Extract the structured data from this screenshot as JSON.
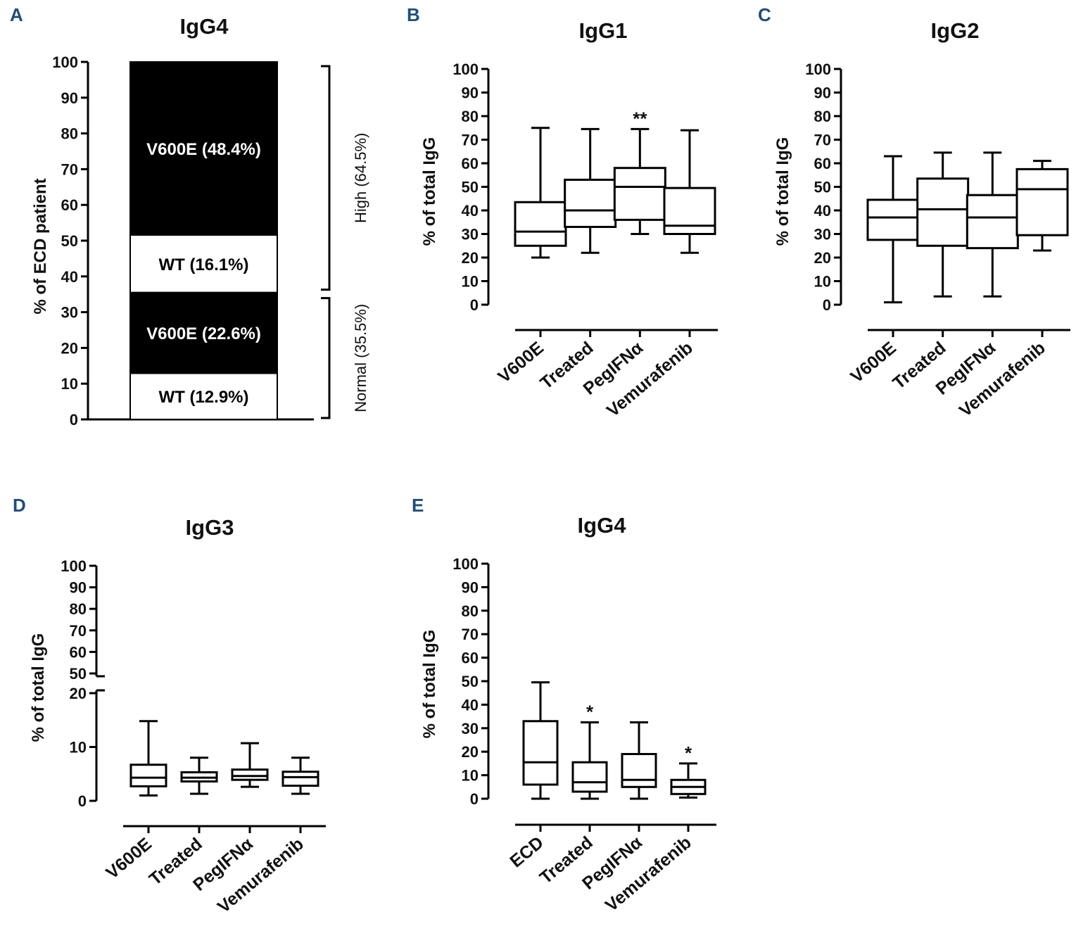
{
  "accent_color": "#1f4e79",
  "panel_a": {
    "letter": "A",
    "title": "IgG4",
    "ylabel": "% of ECD patient",
    "yticks": [
      0,
      10,
      20,
      30,
      40,
      50,
      60,
      70,
      80,
      90,
      100
    ],
    "brackets": [
      {
        "label": "High (64.5%)",
        "from": 35.5,
        "to": 100
      },
      {
        "label": "Normal (35.5%)",
        "from": 0,
        "to": 35.5
      }
    ]
  },
  "panel_b": {
    "letter": "B",
    "title": "IgG1",
    "ylabel": "% of total IgG"
  },
  "panel_c": {
    "letter": "C",
    "title": "IgG2",
    "ylabel": "% of total IgG"
  },
  "panel_d": {
    "letter": "D",
    "title": "IgG3",
    "ylabel": "% of total IgG"
  },
  "panel_e": {
    "letter": "E",
    "title": "IgG4",
    "ylabel": "% of total IgG"
  },
  "chart_data": [
    {
      "panel": "A",
      "type": "bar",
      "title": "IgG4",
      "ylabel": "% of ECD patient",
      "ylim": [
        0,
        100
      ],
      "stacked": true,
      "segments": [
        {
          "label": "WT (12.9%)",
          "value": 12.9,
          "color": "#ffffff"
        },
        {
          "label": "V600E (22.6%)",
          "value": 22.6,
          "color": "#000000"
        },
        {
          "label": "WT (16.1%)",
          "value": 16.1,
          "color": "#ffffff"
        },
        {
          "label": "V600E (48.4%)",
          "value": 48.4,
          "color": "#000000"
        }
      ]
    },
    {
      "panel": "B",
      "type": "box",
      "title": "IgG1",
      "ylabel": "% of total IgG",
      "ylim": [
        0,
        100
      ],
      "yticks": [
        0,
        10,
        20,
        30,
        40,
        50,
        60,
        70,
        80,
        90,
        100
      ],
      "categories": [
        "V600E",
        "Treated",
        "PegIFNα",
        "Vemurafenib"
      ],
      "boxes": [
        {
          "min": 20,
          "q1": 25,
          "median": 31,
          "q3": 43.5,
          "max": 75,
          "sig": ""
        },
        {
          "min": 22,
          "q1": 33,
          "median": 40,
          "q3": 53,
          "max": 74.5,
          "sig": ""
        },
        {
          "min": 30,
          "q1": 36,
          "median": 50,
          "q3": 58,
          "max": 74.5,
          "sig": "**"
        },
        {
          "min": 22,
          "q1": 30,
          "median": 33.5,
          "q3": 49.5,
          "max": 74,
          "sig": ""
        }
      ]
    },
    {
      "panel": "C",
      "type": "box",
      "title": "IgG2",
      "ylabel": "% of total IgG",
      "ylim": [
        0,
        100
      ],
      "yticks": [
        0,
        10,
        20,
        30,
        40,
        50,
        60,
        70,
        80,
        90,
        100
      ],
      "categories": [
        "V600E",
        "Treated",
        "PegIFNα",
        "Vemurafenib"
      ],
      "boxes": [
        {
          "min": 1,
          "q1": 27.5,
          "median": 37,
          "q3": 44.5,
          "max": 63,
          "sig": ""
        },
        {
          "min": 3.5,
          "q1": 25,
          "median": 40.5,
          "q3": 53.5,
          "max": 64.5,
          "sig": ""
        },
        {
          "min": 3.5,
          "q1": 24,
          "median": 37,
          "q3": 46.5,
          "max": 64.5,
          "sig": ""
        },
        {
          "min": 23,
          "q1": 29.5,
          "median": 49,
          "q3": 57.5,
          "max": 61,
          "sig": ""
        }
      ]
    },
    {
      "panel": "D",
      "type": "box",
      "title": "IgG3",
      "ylabel": "% of total IgG",
      "ylim": [
        0,
        100
      ],
      "axis_break": [
        20,
        50
      ],
      "yticks": [
        0,
        10,
        20,
        50,
        60,
        70,
        80,
        90,
        100
      ],
      "categories": [
        "V600E",
        "Treated",
        "PegIFNα",
        "Vemurafenib"
      ],
      "boxes": [
        {
          "min": 1,
          "q1": 2.7,
          "median": 4.3,
          "q3": 6.7,
          "max": 14.8,
          "sig": ""
        },
        {
          "min": 1.3,
          "q1": 3.6,
          "median": 4.3,
          "q3": 5.3,
          "max": 8,
          "sig": ""
        },
        {
          "min": 2.6,
          "q1": 3.9,
          "median": 4.6,
          "q3": 5.8,
          "max": 10.7,
          "sig": ""
        },
        {
          "min": 1.3,
          "q1": 2.8,
          "median": 4.4,
          "q3": 5.4,
          "max": 8,
          "sig": ""
        }
      ]
    },
    {
      "panel": "E",
      "type": "box",
      "title": "IgG4",
      "ylabel": "% of total IgG",
      "ylim": [
        0,
        100
      ],
      "yticks": [
        0,
        10,
        20,
        30,
        40,
        50,
        60,
        70,
        80,
        90,
        100
      ],
      "categories": [
        "ECD",
        "Treated",
        "PegIFNα",
        "Vemurafenib"
      ],
      "boxes": [
        {
          "min": 0,
          "q1": 6,
          "median": 15.5,
          "q3": 33,
          "max": 49.5,
          "sig": ""
        },
        {
          "min": 0,
          "q1": 3,
          "median": 7,
          "q3": 15.5,
          "max": 32.5,
          "sig": "*"
        },
        {
          "min": 0,
          "q1": 5,
          "median": 8,
          "q3": 19,
          "max": 32.5,
          "sig": ""
        },
        {
          "min": 0.5,
          "q1": 2,
          "median": 5,
          "q3": 8,
          "max": 15,
          "sig": "*"
        }
      ]
    }
  ]
}
